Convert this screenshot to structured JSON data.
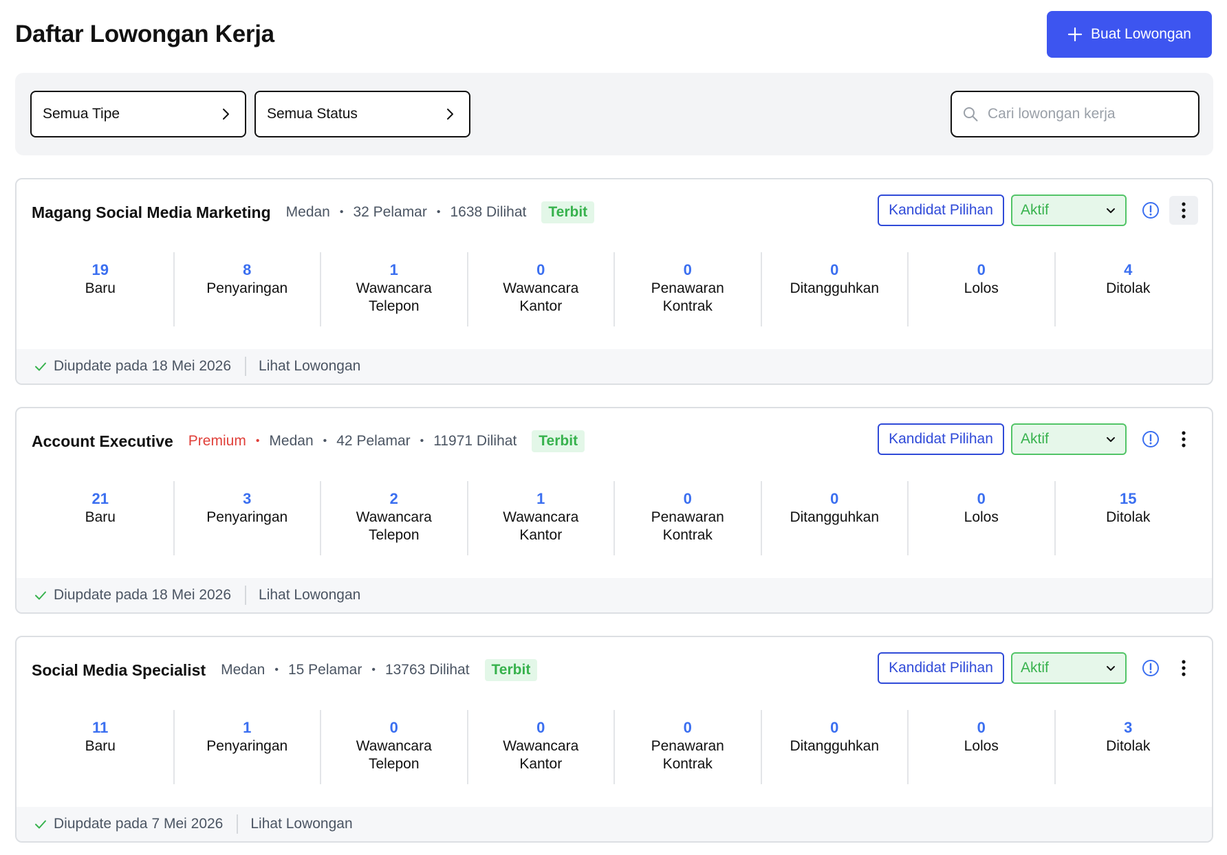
{
  "header": {
    "title": "Daftar Lowongan Kerja",
    "create_label": "Buat Lowongan",
    "accent": "#3d55f0"
  },
  "filters": {
    "type_label": "Semua Tipe",
    "status_label": "Semua Status",
    "search_placeholder": "Cari lowongan kerja",
    "search_value": ""
  },
  "jobs": [
    {
      "title": "Magang Social Media Marketing",
      "premium": "",
      "location": "Medan",
      "applicants": "32 Pelamar",
      "views": "1638 Dilihat",
      "publish_status": "Terbit",
      "shortlist_label": "Kandidat Pilihan",
      "status": "Aktif",
      "stats": [
        {
          "value": "19",
          "label": "Baru"
        },
        {
          "value": "8",
          "label": "Penyaringan"
        },
        {
          "value": "1",
          "label": "Wawancara\nTelepon"
        },
        {
          "value": "0",
          "label": "Wawancara\nKantor"
        },
        {
          "value": "0",
          "label": "Penawaran\nKontrak"
        },
        {
          "value": "0",
          "label": "Ditangguhkan"
        },
        {
          "value": "0",
          "label": "Lolos"
        },
        {
          "value": "4",
          "label": "Ditolak"
        }
      ],
      "updated": "Diupdate pada 18 Mei 2026",
      "view_label": "Lihat Lowongan"
    },
    {
      "title": "Account Executive",
      "premium": "Premium",
      "location": "Medan",
      "applicants": "42 Pelamar",
      "views": "11971 Dilihat",
      "publish_status": "Terbit",
      "shortlist_label": "Kandidat Pilihan",
      "status": "Aktif",
      "stats": [
        {
          "value": "21",
          "label": "Baru"
        },
        {
          "value": "3",
          "label": "Penyaringan"
        },
        {
          "value": "2",
          "label": "Wawancara\nTelepon"
        },
        {
          "value": "1",
          "label": "Wawancara\nKantor"
        },
        {
          "value": "0",
          "label": "Penawaran\nKontrak"
        },
        {
          "value": "0",
          "label": "Ditangguhkan"
        },
        {
          "value": "0",
          "label": "Lolos"
        },
        {
          "value": "15",
          "label": "Ditolak"
        }
      ],
      "updated": "Diupdate pada 18 Mei 2026",
      "view_label": "Lihat Lowongan"
    },
    {
      "title": "Social Media Specialist",
      "premium": "",
      "location": "Medan",
      "applicants": "15 Pelamar",
      "views": "13763 Dilihat",
      "publish_status": "Terbit",
      "shortlist_label": "Kandidat Pilihan",
      "status": "Aktif",
      "stats": [
        {
          "value": "11",
          "label": "Baru"
        },
        {
          "value": "1",
          "label": "Penyaringan"
        },
        {
          "value": "0",
          "label": "Wawancara\nTelepon"
        },
        {
          "value": "0",
          "label": "Wawancara\nKantor"
        },
        {
          "value": "0",
          "label": "Penawaran\nKontrak"
        },
        {
          "value": "0",
          "label": "Ditangguhkan"
        },
        {
          "value": "0",
          "label": "Lolos"
        },
        {
          "value": "3",
          "label": "Ditolak"
        }
      ],
      "updated": "Diupdate pada 7 Mei 2026",
      "view_label": "Lihat Lowongan"
    }
  ]
}
